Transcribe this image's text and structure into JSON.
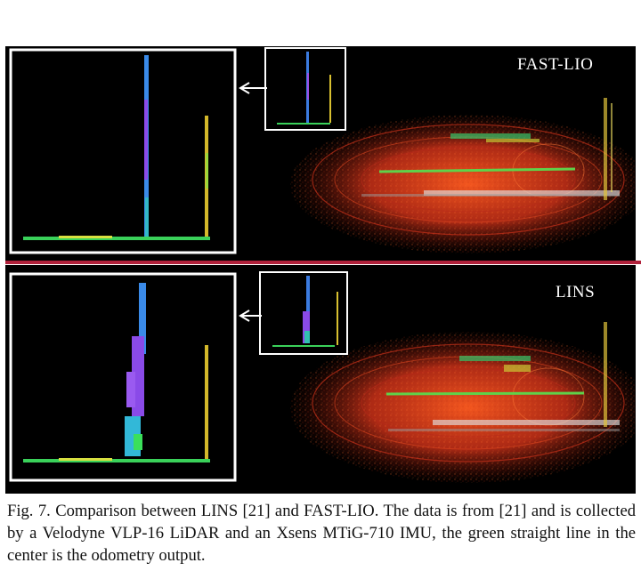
{
  "figure": {
    "panels": [
      {
        "id": "top",
        "label": "FAST-LIO"
      },
      {
        "id": "bottom",
        "label": "LINS"
      }
    ],
    "caption": "Fig. 7.    Comparison between LINS [21] and FAST-LIO. The data is from [21] and is collected by a Velodyne VLP-16 LiDAR and an Xsens MTiG-710 IMU, the green straight line in the center is the odometry output."
  },
  "colors": {
    "background": "#000000",
    "divider": "#b0203a",
    "odometry_line": "#5fd24a",
    "point_cloud": "#d83a1c",
    "inset_frame": "#ffffff"
  },
  "icons": [
    "left-arrow-icon"
  ]
}
